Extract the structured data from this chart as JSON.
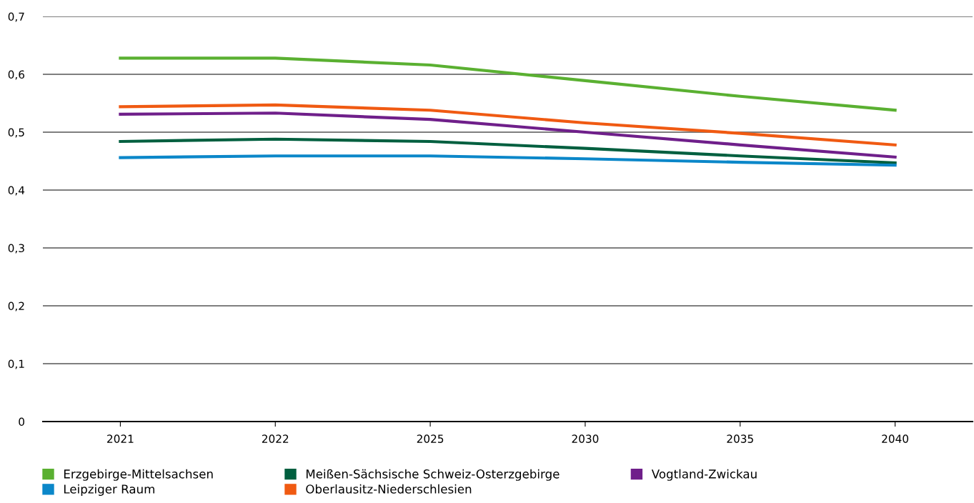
{
  "chart_data": {
    "type": "line",
    "categories": [
      "2021",
      "2022",
      "2025",
      "2030",
      "2035",
      "2040"
    ],
    "series": [
      {
        "name": "Erzgebirge-Mittelsachsen",
        "color": "#5ab031",
        "values": [
          0.628,
          0.628,
          0.616,
          0.589,
          0.562,
          0.538
        ]
      },
      {
        "name": "Meißen-Sächsische Schweiz-Osterzgebirge",
        "color": "#005f3f",
        "values": [
          0.484,
          0.488,
          0.484,
          0.472,
          0.459,
          0.447
        ]
      },
      {
        "name": "Vogtland-Zwickau",
        "color": "#6f1f8a",
        "values": [
          0.531,
          0.533,
          0.522,
          0.5,
          0.478,
          0.457
        ]
      },
      {
        "name": "Leipziger Raum",
        "color": "#0b87c9",
        "values": [
          0.456,
          0.459,
          0.459,
          0.454,
          0.448,
          0.443
        ]
      },
      {
        "name": "Oberlausitz-Niederschlesien",
        "color": "#f05a12",
        "values": [
          0.544,
          0.547,
          0.538,
          0.516,
          0.498,
          0.478
        ]
      }
    ],
    "ylim": [
      0,
      0.7
    ],
    "yticks": [
      {
        "value": 0,
        "label": "0"
      },
      {
        "value": 0.1,
        "label": "0,1"
      },
      {
        "value": 0.2,
        "label": "0,2"
      },
      {
        "value": 0.3,
        "label": "0,3"
      },
      {
        "value": 0.4,
        "label": "0,4"
      },
      {
        "value": 0.5,
        "label": "0,5"
      },
      {
        "value": 0.6,
        "label": "0,6"
      },
      {
        "value": 0.7,
        "label": "0,7"
      }
    ],
    "grid": "y",
    "legend": "bottom",
    "marker": "none",
    "line_style": "solid"
  }
}
